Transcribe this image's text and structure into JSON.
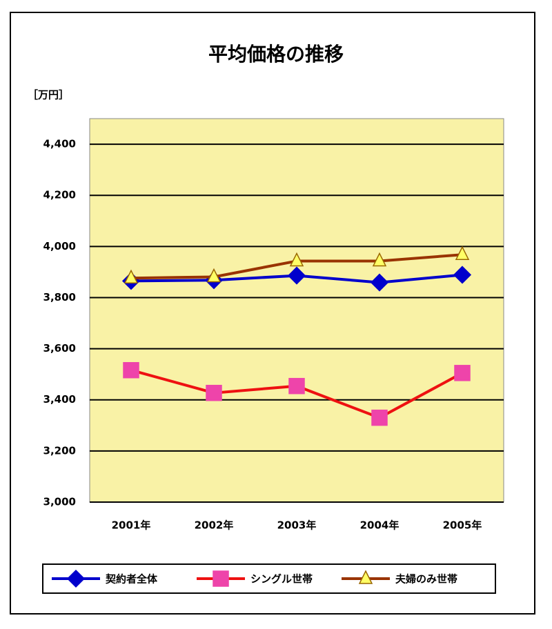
{
  "chart_data": {
    "type": "line",
    "title": "平均価格の推移",
    "y_unit_label": "［万円］",
    "categories": [
      "2001年",
      "2002年",
      "2003年",
      "2004年",
      "2005年"
    ],
    "series": [
      {
        "name": "契約者全体",
        "color": "#0000cc",
        "marker": "diamond",
        "marker_color": "#0000cc",
        "values": [
          3865,
          3868,
          3886,
          3859,
          3889
        ]
      },
      {
        "name": "シングル世帯",
        "color": "#ee1111",
        "marker": "square",
        "marker_color": "#ee44aa",
        "values": [
          3516,
          3427,
          3454,
          3330,
          3505
        ]
      },
      {
        "name": "夫婦のみ世帯",
        "color": "#993300",
        "marker": "triangle",
        "marker_color": "#ffff66",
        "values": [
          3876,
          3881,
          3943,
          3943,
          3968
        ]
      }
    ],
    "ylim": [
      3000,
      4500
    ],
    "yticks": [
      {
        "value": 3000,
        "label": "3,000"
      },
      {
        "value": 3200,
        "label": "3,200"
      },
      {
        "value": 3400,
        "label": "3,400"
      },
      {
        "value": 3600,
        "label": "3,600"
      },
      {
        "value": 3800,
        "label": "3,800"
      },
      {
        "value": 4000,
        "label": "4,000"
      },
      {
        "value": 4200,
        "label": "4,200"
      },
      {
        "value": 4400,
        "label": "4,400"
      }
    ],
    "grid": true,
    "plot_background": "#f9f2a6",
    "legend_position": "bottom"
  }
}
